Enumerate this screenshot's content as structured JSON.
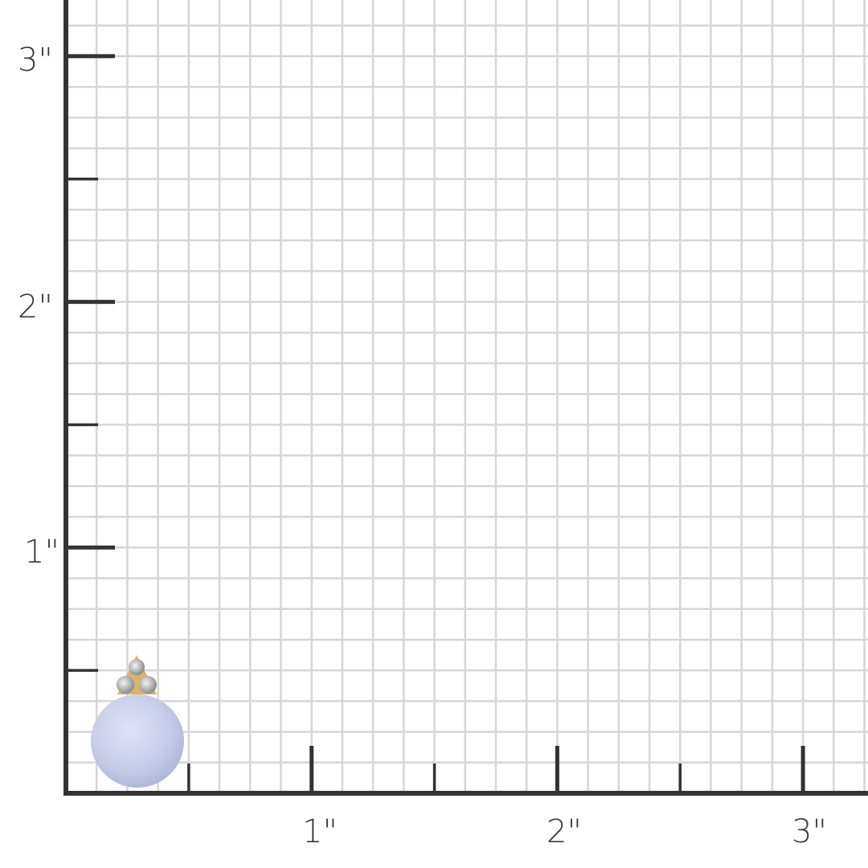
{
  "ruler": {
    "y_labels": [
      "3\"",
      "2\"",
      "1\""
    ],
    "x_labels": [
      "1\"",
      "2\"",
      "3\""
    ],
    "unit": "inch",
    "grid_divisions_per_inch": 8,
    "axis_color": "#333333",
    "grid_color": "#d6d6d6"
  },
  "product": {
    "type": "bead drop earring",
    "icon": "blue-chalcedony-bead-with-diamond-cluster",
    "bead_color": "#c9cfea",
    "metal_color": "#d9b46a",
    "approx_height_in": 0.56,
    "approx_width_in": 0.38
  }
}
